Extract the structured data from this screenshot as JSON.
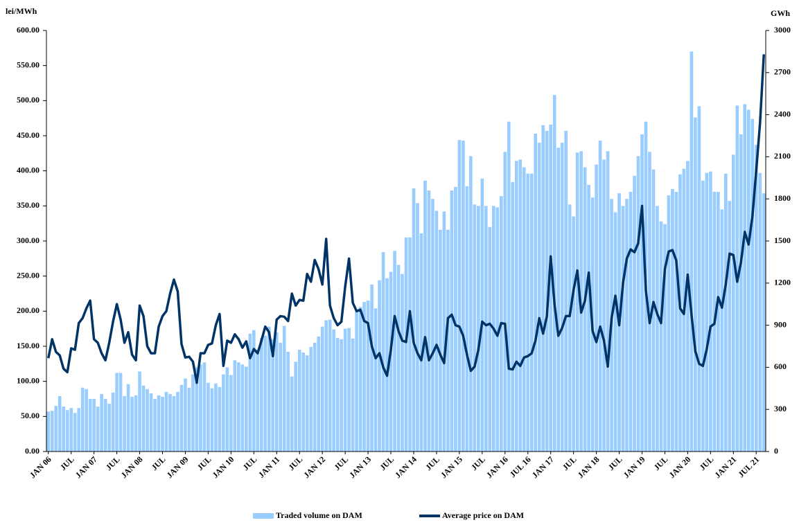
{
  "chart_data": {
    "type": "bar-line",
    "y_label": "lei/MWh",
    "y2_label": "GWh",
    "categories": [
      "JAN 06",
      null,
      null,
      null,
      null,
      null,
      "JUL",
      null,
      null,
      null,
      null,
      null,
      "JAN 07",
      null,
      null,
      null,
      null,
      null,
      "JUL",
      null,
      null,
      null,
      null,
      null,
      "JAN 08",
      null,
      null,
      null,
      null,
      null,
      "JUL",
      null,
      null,
      null,
      null,
      null,
      "JAN 09",
      null,
      null,
      null,
      null,
      null,
      "JUL",
      null,
      null,
      null,
      null,
      null,
      "JAN 10",
      null,
      null,
      null,
      null,
      null,
      "JUL",
      null,
      null,
      null,
      null,
      null,
      "JAN 11",
      null,
      null,
      null,
      null,
      null,
      "JUL",
      null,
      null,
      null,
      null,
      null,
      "JAN 12",
      null,
      null,
      null,
      null,
      null,
      "JUL",
      null,
      null,
      null,
      null,
      null,
      "JAN 13",
      null,
      null,
      null,
      null,
      null,
      "JUL",
      null,
      null,
      null,
      null,
      null,
      "JAN 14",
      null,
      null,
      null,
      null,
      null,
      "JUL",
      null,
      null,
      null,
      null,
      null,
      "JAN 15",
      null,
      null,
      null,
      null,
      null,
      "JUL",
      null,
      null,
      null,
      null,
      null,
      "JAN 16",
      null,
      null,
      null,
      null,
      null,
      "JUL 16",
      null,
      null,
      null,
      null,
      null,
      "JAN 17",
      null,
      null,
      null,
      null,
      null,
      "JUL",
      null,
      null,
      null,
      null,
      null,
      "JAN 18",
      null,
      null,
      null,
      null,
      null,
      "JUL",
      null,
      null,
      null,
      null,
      null,
      "JAN 19",
      null,
      null,
      null,
      null,
      null,
      "JUL",
      null,
      null,
      null,
      null,
      null,
      "JAN 20",
      null,
      null,
      null,
      null,
      null,
      "JUL",
      null,
      null,
      null,
      null,
      null,
      "JAN 21",
      null,
      null,
      null,
      null,
      null,
      "JUL 21",
      null,
      null
    ],
    "series": [
      {
        "name": "Traded volume on DAM",
        "color": "#99ccff",
        "kind": "bar",
        "axis": "y2",
        "values": [
          285,
          290,
          325,
          395,
          320,
          295,
          310,
          275,
          310,
          455,
          445,
          375,
          375,
          320,
          410,
          375,
          340,
          420,
          560,
          560,
          395,
          480,
          390,
          400,
          570,
          470,
          445,
          415,
          375,
          400,
          390,
          425,
          410,
          395,
          425,
          475,
          520,
          455,
          550,
          600,
          620,
          635,
          490,
          450,
          485,
          460,
          550,
          600,
          545,
          650,
          635,
          620,
          605,
          840,
          865,
          725,
          810,
          825,
          890,
          800,
          850,
          775,
          895,
          710,
          535,
          640,
          725,
          705,
          685,
          745,
          775,
          820,
          890,
          935,
          940,
          870,
          810,
          800,
          875,
          880,
          805,
          1000,
          1030,
          1065,
          1075,
          1190,
          1020,
          1220,
          1420,
          1235,
          1280,
          1430,
          1330,
          1265,
          1525,
          1525,
          1875,
          1770,
          1555,
          1930,
          1860,
          1800,
          1715,
          1580,
          1710,
          1580,
          1860,
          1885,
          2220,
          2215,
          1890,
          2105,
          1760,
          1750,
          1945,
          1750,
          1600,
          1750,
          1740,
          1820,
          2135,
          2350,
          1920,
          2070,
          2080,
          2025,
          1980,
          1980,
          2265,
          2200,
          2325,
          2285,
          2330,
          2540,
          2165,
          2200,
          2285,
          1760,
          1675,
          2130,
          2140,
          2025,
          1900,
          1810,
          2045,
          2215,
          2080,
          2140,
          1800,
          1705,
          1840,
          1750,
          1800,
          1850,
          1965,
          2105,
          2260,
          2350,
          2135,
          2010,
          1750,
          1640,
          1620,
          1825,
          1870,
          1850,
          1975,
          2015,
          2070,
          2850,
          2380,
          2460,
          1930,
          1985,
          1995,
          1850,
          1850,
          1725,
          1980,
          1785,
          2115,
          2465,
          2260,
          2475,
          2435,
          2370,
          2185,
          1985,
          1840
        ]
      },
      {
        "name": "Average price on DAM",
        "color": "#003366",
        "kind": "line",
        "values": [
          133,
          160,
          142,
          137,
          118,
          113,
          147,
          145,
          183,
          190,
          204,
          215,
          160,
          155,
          140,
          130,
          155,
          185,
          210,
          188,
          155,
          170,
          138,
          130,
          208,
          193,
          150,
          140,
          140,
          178,
          193,
          200,
          225,
          245,
          228,
          153,
          134,
          135,
          128,
          98,
          140,
          140,
          152,
          154,
          180,
          196,
          122,
          158,
          155,
          167,
          160,
          148,
          157,
          133,
          146,
          140,
          158,
          178,
          170,
          136,
          188,
          193,
          192,
          186,
          225,
          208,
          216,
          215,
          253,
          242,
          273,
          260,
          238,
          303,
          208,
          190,
          180,
          185,
          235,
          275,
          212,
          200,
          202,
          186,
          183,
          150,
          133,
          140,
          120,
          108,
          145,
          193,
          172,
          158,
          156,
          200,
          155,
          140,
          130,
          163,
          130,
          140,
          152,
          138,
          126,
          190,
          195,
          180,
          178,
          165,
          138,
          115,
          121,
          145,
          185,
          180,
          182,
          175,
          165,
          183,
          182,
          118,
          117,
          128,
          122,
          134,
          136,
          140,
          158,
          190,
          168,
          193,
          278,
          210,
          165,
          176,
          193,
          193,
          230,
          258,
          198,
          215,
          255,
          172,
          156,
          178,
          158,
          121,
          190,
          222,
          180,
          240,
          275,
          288,
          284,
          297,
          350,
          230,
          183,
          213,
          196,
          183,
          260,
          285,
          287,
          272,
          204,
          196,
          252,
          195,
          143,
          125,
          122,
          146,
          178,
          182,
          220,
          205,
          238,
          282,
          280,
          242,
          270,
          313,
          295,
          335,
          400,
          468,
          566
        ]
      }
    ],
    "ylim": [
      0,
      600
    ],
    "yticks": [
      {
        "value": 0,
        "label": "0.00"
      },
      {
        "value": 50,
        "label": "50.00"
      },
      {
        "value": 100,
        "label": "100.00"
      },
      {
        "value": 150,
        "label": "150.00"
      },
      {
        "value": 200,
        "label": "200.00"
      },
      {
        "value": 250,
        "label": "250.00"
      },
      {
        "value": 300,
        "label": "300.00"
      },
      {
        "value": 350,
        "label": "350.00"
      },
      {
        "value": 400,
        "label": "400.00"
      },
      {
        "value": 450,
        "label": "450.00"
      },
      {
        "value": 500,
        "label": "500.00"
      },
      {
        "value": 550,
        "label": "550.00"
      },
      {
        "value": 600,
        "label": "600.00"
      }
    ],
    "y2lim": [
      0,
      3000
    ],
    "y2ticks": [
      0,
      300,
      600,
      900,
      1200,
      1500,
      1800,
      2100,
      2400,
      2700,
      3000
    ]
  }
}
